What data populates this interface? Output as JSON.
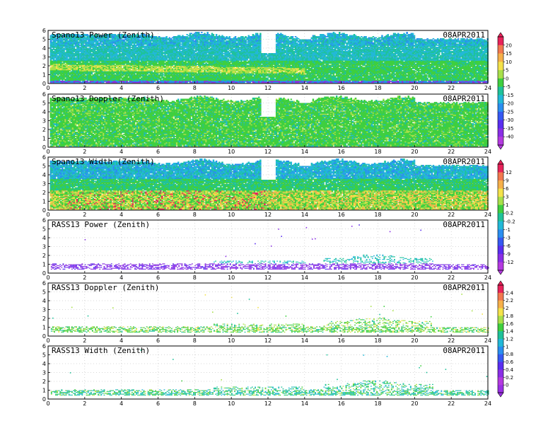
{
  "chart_data": [
    {
      "type": "heatmap",
      "title": "Spano13 Power (Zenith)",
      "date": "08APR2011",
      "xlim": [
        0,
        24
      ],
      "ylim": [
        0,
        6
      ],
      "x_ticks": [
        "0",
        "2",
        "4",
        "6",
        "8",
        "10",
        "12",
        "14",
        "16",
        "18",
        "20",
        "22",
        "24"
      ],
      "y_ticks": [
        "0",
        "1",
        "2",
        "3",
        "4",
        "5",
        "6"
      ],
      "grid": true,
      "fill": "dense",
      "gaps": [
        [
          11.6,
          12.4,
          3.4
        ],
        [
          13.7,
          14.3,
          5.0
        ]
      ],
      "colorbar": 0
    },
    {
      "type": "heatmap",
      "title": "Spano13 Doppler (Zenith)",
      "date": "08APR2011",
      "xlim": [
        0,
        24
      ],
      "ylim": [
        0,
        6
      ],
      "x_ticks": [
        "0",
        "2",
        "4",
        "6",
        "8",
        "10",
        "12",
        "14",
        "16",
        "18",
        "20",
        "22",
        "24"
      ],
      "y_ticks": [
        "0",
        "1",
        "2",
        "3",
        "4",
        "5",
        "6"
      ],
      "grid": true,
      "fill": "dense",
      "gaps": [
        [
          11.6,
          12.4,
          3.4
        ],
        [
          13.7,
          14.3,
          5.0
        ]
      ],
      "colorbar": 0
    },
    {
      "type": "heatmap",
      "title": "Spano13 Width (Zenith)",
      "date": "08APR2011",
      "xlim": [
        0,
        24
      ],
      "ylim": [
        0,
        6
      ],
      "x_ticks": [
        "0",
        "2",
        "4",
        "6",
        "8",
        "10",
        "12",
        "14",
        "16",
        "18",
        "20",
        "22",
        "24"
      ],
      "y_ticks": [
        "0",
        "1",
        "2",
        "3",
        "4",
        "5",
        "6"
      ],
      "grid": true,
      "fill": "dense",
      "gaps": [
        [
          11.6,
          12.4,
          3.4
        ],
        [
          13.7,
          14.3,
          5.0
        ]
      ],
      "colorbar": 1
    },
    {
      "type": "heatmap",
      "title": "RASS13 Power (Zenith)",
      "date": "08APR2011",
      "xlim": [
        0,
        24
      ],
      "ylim": [
        0,
        6
      ],
      "x_ticks": [
        "0",
        "2",
        "4",
        "6",
        "8",
        "10",
        "12",
        "14",
        "16",
        "18",
        "20",
        "22",
        "24"
      ],
      "y_ticks": [
        "0",
        "1",
        "2",
        "3",
        "4",
        "5",
        "6"
      ],
      "grid": true,
      "fill": "sparse",
      "gaps": [],
      "colorbar": 1
    },
    {
      "type": "heatmap",
      "title": "RASS13 Doppler (Zenith)",
      "date": "08APR2011",
      "xlim": [
        0,
        24
      ],
      "ylim": [
        0,
        6
      ],
      "x_ticks": [
        "0",
        "2",
        "4",
        "6",
        "8",
        "10",
        "12",
        "14",
        "16",
        "18",
        "20",
        "22",
        "24"
      ],
      "y_ticks": [
        "0",
        "1",
        "2",
        "3",
        "4",
        "5",
        "6"
      ],
      "grid": true,
      "fill": "sparse",
      "gaps": [],
      "colorbar": 2
    },
    {
      "type": "heatmap",
      "title": "RASS13 Width (Zenith)",
      "date": "08APR2011",
      "xlim": [
        0,
        24
      ],
      "ylim": [
        0,
        6
      ],
      "x_ticks": [
        "0",
        "2",
        "4",
        "6",
        "8",
        "10",
        "12",
        "14",
        "16",
        "18",
        "20",
        "22",
        "24"
      ],
      "y_ticks": [
        "0",
        "1",
        "2",
        "3",
        "4",
        "5",
        "6"
      ],
      "grid": true,
      "fill": "sparse",
      "gaps": [],
      "colorbar": 2
    }
  ],
  "colorbars": [
    {
      "labels": [
        "20",
        "15",
        "10",
        "5",
        "0",
        "-5",
        "-15",
        "-20",
        "-25",
        "-30",
        "-35",
        "-40"
      ],
      "colors": [
        "#e8235a",
        "#f2794f",
        "#f6b04a",
        "#f4e24a",
        "#a8e04a",
        "#3fcf3f",
        "#1fc29a",
        "#22b8d8",
        "#2a8ef0",
        "#3659f2",
        "#5a2ef0",
        "#8a2ee6",
        "#b43ae0"
      ]
    },
    {
      "labels": [
        "12",
        "9",
        "6",
        "3",
        "1",
        "0.2",
        "-0.2",
        "-1",
        "-3",
        "-6",
        "-9",
        "-12"
      ],
      "colors": [
        "#e8235a",
        "#f2794f",
        "#f6b04a",
        "#f4e24a",
        "#a8e04a",
        "#3fcf3f",
        "#1fc29a",
        "#22b8d8",
        "#2a8ef0",
        "#3659f2",
        "#5a2ef0",
        "#8a2ee6",
        "#b43ae0"
      ]
    },
    {
      "labels": [
        "2.4",
        "2.2",
        "2",
        "1.8",
        "1.6",
        "1.4",
        "1.2",
        "1",
        "0.8",
        "0.6",
        "0.4",
        "0.2",
        "0"
      ],
      "colors": [
        "#e8235a",
        "#f2794f",
        "#f6b04a",
        "#f4e24a",
        "#a8e04a",
        "#3fcf3f",
        "#1fc29a",
        "#22b8d8",
        "#2a8ef0",
        "#3659f2",
        "#5a2ef0",
        "#8a2ee6",
        "#b43ae0",
        "#9a30e4"
      ]
    }
  ],
  "palette": {
    "blue": "#2a8ef0",
    "cyan": "#22b8d8",
    "teal": "#1fc29a",
    "green": "#3fcf3f",
    "lime": "#a8e04a",
    "yellow": "#f4e24a",
    "orange": "#f6b04a",
    "red": "#e8235a",
    "violet": "#8a2ee6"
  }
}
